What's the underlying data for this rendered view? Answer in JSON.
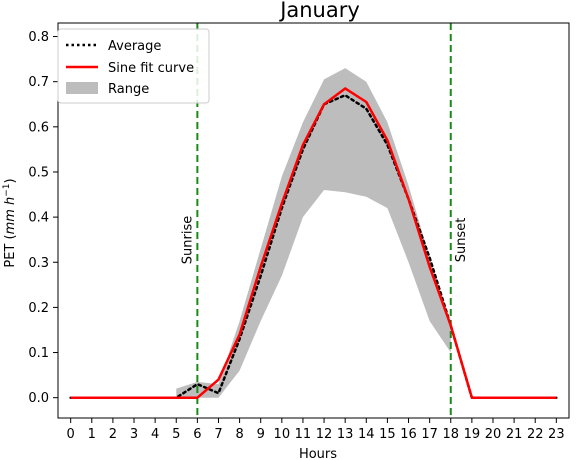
{
  "chart_data": {
    "type": "line",
    "title": "January",
    "xlabel": "Hours",
    "ylabel": "PET (mm h⁻¹)",
    "ylabel_prefix": "PET (",
    "ylabel_unit": "mm h",
    "ylabel_exp": "−1",
    "ylabel_suffix": ")",
    "x": [
      0,
      1,
      2,
      3,
      4,
      5,
      6,
      7,
      8,
      9,
      10,
      11,
      12,
      13,
      14,
      15,
      16,
      17,
      18,
      19,
      20,
      21,
      22,
      23
    ],
    "xlim": [
      -0.6,
      23.6
    ],
    "ylim": [
      -0.045,
      0.83
    ],
    "yticks": [
      0.0,
      0.1,
      0.2,
      0.3,
      0.4,
      0.5,
      0.6,
      0.7,
      0.8
    ],
    "ytick_labels": [
      "0.0",
      "0.1",
      "0.2",
      "0.3",
      "0.4",
      "0.5",
      "0.6",
      "0.7",
      "0.8"
    ],
    "xtick_labels": [
      "0",
      "1",
      "2",
      "3",
      "4",
      "5",
      "6",
      "7",
      "8",
      "9",
      "10",
      "11",
      "12",
      "13",
      "14",
      "15",
      "16",
      "17",
      "18",
      "19",
      "20",
      "21",
      "22",
      "23"
    ],
    "series": [
      {
        "name": "Average",
        "style": "dotted",
        "color": "#000000",
        "values": [
          0,
          0,
          0,
          0,
          0,
          0.0,
          0.03,
          0.01,
          0.13,
          0.27,
          0.42,
          0.55,
          0.65,
          0.67,
          0.64,
          0.56,
          0.44,
          0.31,
          0.16,
          0,
          0,
          0,
          0,
          0
        ]
      },
      {
        "name": "Sine fit curve",
        "style": "solid",
        "color": "#ff0000",
        "values": [
          0,
          0,
          0,
          0,
          0,
          0,
          0,
          0.04,
          0.14,
          0.29,
          0.43,
          0.56,
          0.65,
          0.685,
          0.655,
          0.57,
          0.44,
          0.29,
          0.16,
          0,
          0,
          0,
          0,
          0
        ]
      }
    ],
    "range": {
      "name": "Range",
      "color": "#bdbdbd",
      "x": [
        5,
        6,
        7,
        8,
        9,
        10,
        11,
        12,
        13,
        14,
        15,
        16,
        17,
        18
      ],
      "lower": [
        0,
        0,
        0,
        0.06,
        0.17,
        0.27,
        0.4,
        0.46,
        0.455,
        0.445,
        0.42,
        0.3,
        0.17,
        0.1
      ],
      "upper": [
        0.02,
        0.035,
        0.03,
        0.17,
        0.33,
        0.49,
        0.61,
        0.705,
        0.73,
        0.7,
        0.61,
        0.47,
        0.31,
        0.16
      ]
    },
    "vlines": [
      {
        "x": 6,
        "label": "Sunrise",
        "color": "#1a8a1a"
      },
      {
        "x": 18,
        "label": "Sunset",
        "color": "#1a8a1a"
      }
    ],
    "legend_position": "top-left",
    "grid": false
  }
}
